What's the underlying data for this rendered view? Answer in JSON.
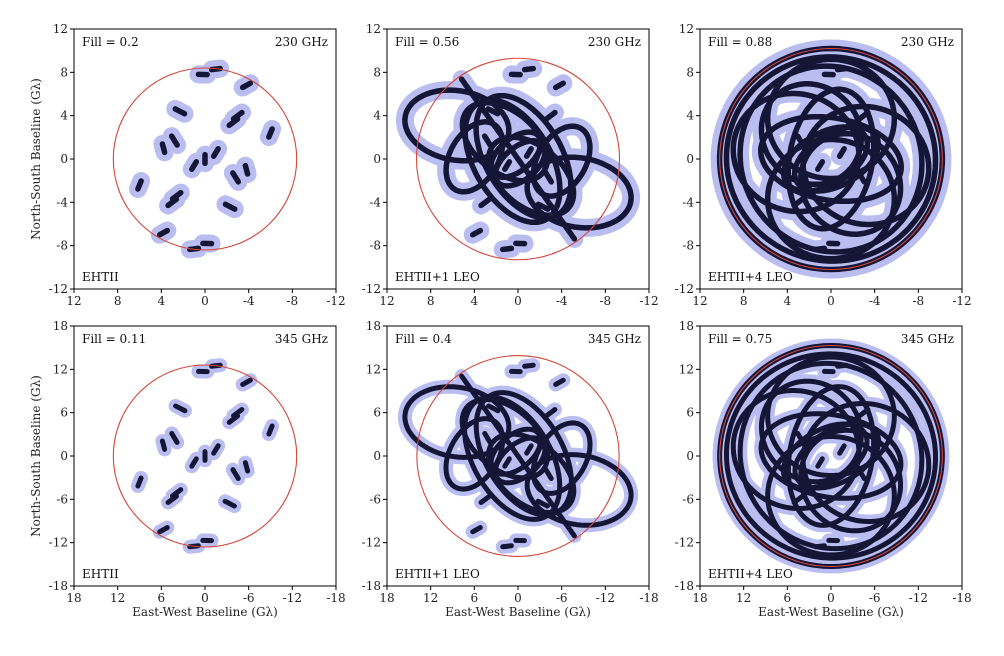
{
  "figure": {
    "xlabel": "East-West Baseline (Gλ)",
    "ylabel": "North-South Baseline (Gλ)"
  },
  "colors": {
    "track": "#151536",
    "halo": "#b9bdf0",
    "circle": "#d2473b",
    "axes": "#000000"
  },
  "chart_data": [
    {
      "type": "scatter",
      "annotations": {
        "fill": "Fill = 0.2",
        "frequency": "230 GHz",
        "array": "EHTII"
      },
      "xlim": [
        12,
        -12
      ],
      "ylim": [
        -12,
        12
      ],
      "xticks": [
        "12",
        "8",
        "4",
        "0",
        "-4",
        "-8",
        "-12"
      ],
      "yticks": [
        "-12",
        "-8",
        "-4",
        "0",
        "4",
        "8",
        "12"
      ],
      "circle_radius": 8.4,
      "orbits": [],
      "segments": [
        [
          0.2,
          7.8,
          0.1
        ],
        [
          -1.0,
          8.3,
          0.1
        ],
        [
          -3.8,
          6.8,
          0.1
        ],
        [
          2.3,
          4.4,
          0.12
        ],
        [
          -3.0,
          4.0,
          0.12
        ],
        [
          -2.6,
          3.4,
          0.12
        ],
        [
          -6.0,
          2.4,
          0.1
        ],
        [
          2.8,
          1.7,
          0.12
        ],
        [
          3.8,
          1.0,
          0.1
        ],
        [
          -1.0,
          0.6,
          0.1
        ],
        [
          0.0,
          0.0,
          0.1
        ],
        [
          1.0,
          -0.6,
          0.1
        ],
        [
          -3.8,
          -1.0,
          0.1
        ],
        [
          -2.8,
          -1.7,
          0.12
        ],
        [
          6.0,
          -2.4,
          0.1
        ],
        [
          2.6,
          -3.4,
          0.12
        ],
        [
          3.0,
          -4.0,
          0.12
        ],
        [
          -2.3,
          -4.4,
          0.12
        ],
        [
          3.8,
          -6.8,
          0.1
        ],
        [
          1.0,
          -8.3,
          0.1
        ],
        [
          -0.2,
          -7.8,
          0.1
        ]
      ]
    },
    {
      "type": "scatter",
      "annotations": {
        "fill": "Fill = 0.56",
        "frequency": "230 GHz",
        "array": "EHTII+1 LEO"
      },
      "xlim": [
        12,
        -12
      ],
      "ylim": [
        -12,
        12
      ],
      "xticks": [
        "12",
        "8",
        "4",
        "0",
        "-4",
        "-8",
        "-12"
      ],
      "yticks": [
        "-12",
        "-8",
        "-4",
        "0",
        "4",
        "8",
        "12"
      ],
      "circle_radius": 9.3,
      "orbits": [
        [
          0.0,
          0.0,
          9.0,
          0.0,
          55
        ],
        [
          -0.5,
          0.2,
          6.2,
          3.5,
          60
        ],
        [
          0.5,
          -0.2,
          6.2,
          3.5,
          240
        ],
        [
          1.2,
          1.6,
          4.5,
          2.8,
          40
        ],
        [
          -1.2,
          -1.6,
          4.5,
          2.8,
          220
        ],
        [
          0.2,
          0.4,
          2.7,
          1.5,
          140
        ],
        [
          -0.2,
          -0.4,
          2.7,
          1.5,
          320
        ],
        [
          4.0,
          0.2,
          3.5,
          2.2,
          300
        ],
        [
          -4.0,
          -0.2,
          3.5,
          2.2,
          120
        ],
        [
          5.6,
          3.1,
          4.8,
          3.2,
          190
        ],
        [
          -5.6,
          -3.1,
          4.8,
          3.2,
          10
        ]
      ],
      "segments": [
        [
          0.2,
          7.8,
          0.1
        ],
        [
          -1.0,
          8.3,
          0.1
        ],
        [
          -3.8,
          6.8,
          0.1
        ],
        [
          2.3,
          4.4,
          0.12
        ],
        [
          -3.0,
          4.0,
          0.12
        ],
        [
          2.8,
          1.7,
          0.12
        ],
        [
          -1.0,
          0.6,
          0.1
        ],
        [
          1.0,
          -0.6,
          0.1
        ],
        [
          -2.8,
          -1.7,
          0.12
        ],
        [
          3.0,
          -4.0,
          0.12
        ],
        [
          -2.3,
          -4.4,
          0.12
        ],
        [
          3.8,
          -6.8,
          0.1
        ],
        [
          1.0,
          -8.3,
          0.1
        ],
        [
          -0.2,
          -7.8,
          0.1
        ]
      ]
    },
    {
      "type": "scatter",
      "annotations": {
        "fill": "Fill = 0.88",
        "frequency": "230 GHz",
        "array": "EHTII+4 LEO"
      },
      "xlim": [
        12,
        -12
      ],
      "ylim": [
        -12,
        12
      ],
      "xticks": [
        "12",
        "8",
        "4",
        "0",
        "-4",
        "-8",
        "-12"
      ],
      "yticks": [
        "-12",
        "-8",
        "-4",
        "0",
        "4",
        "8",
        "12"
      ],
      "circle_radius": 10.2,
      "orbits": [
        [
          0.0,
          0.0,
          10.2,
          10.2,
          0
        ],
        [
          0.0,
          0.0,
          9.6,
          9.4,
          20
        ],
        [
          0.0,
          0.0,
          8.7,
          8.2,
          60
        ],
        [
          0.0,
          3.7,
          5.8,
          5.5,
          0
        ],
        [
          0.0,
          -3.7,
          5.8,
          5.5,
          0
        ],
        [
          3.2,
          0.6,
          5.8,
          5.4,
          20
        ],
        [
          -3.2,
          -0.6,
          5.8,
          5.4,
          200
        ],
        [
          1.8,
          2.3,
          4.8,
          4.4,
          50
        ],
        [
          -1.8,
          -2.3,
          4.8,
          4.4,
          230
        ],
        [
          0.0,
          0.0,
          6.5,
          3.8,
          10
        ],
        [
          0.0,
          0.0,
          6.5,
          3.8,
          100
        ],
        [
          0.5,
          0.0,
          4.2,
          2.4,
          150
        ],
        [
          -0.5,
          0.0,
          4.2,
          2.4,
          330
        ]
      ],
      "segments": [
        [
          0.2,
          7.8,
          0.1
        ],
        [
          -1.0,
          8.3,
          0.1
        ],
        [
          -3.0,
          4.0,
          0.12
        ],
        [
          2.8,
          1.7,
          0.12
        ],
        [
          -1.0,
          0.6,
          0.1
        ],
        [
          1.0,
          -0.6,
          0.1
        ],
        [
          -2.8,
          -1.7,
          0.12
        ],
        [
          3.0,
          -4.0,
          0.12
        ],
        [
          1.0,
          -8.3,
          0.1
        ],
        [
          -0.2,
          -7.8,
          0.1
        ]
      ]
    },
    {
      "type": "scatter",
      "annotations": {
        "fill": "Fill = 0.11",
        "frequency": "345 GHz",
        "array": "EHTII"
      },
      "xlim": [
        18,
        -18
      ],
      "ylim": [
        -18,
        18
      ],
      "xticks": [
        "18",
        "12",
        "6",
        "0",
        "-6",
        "-12",
        "-18"
      ],
      "yticks": [
        "-18",
        "-12",
        "-6",
        "0",
        "6",
        "12",
        "18"
      ],
      "circle_radius": 12.6,
      "orbits": [],
      "segments": [
        [
          0.3,
          11.7,
          0.15
        ],
        [
          -1.5,
          12.5,
          0.15
        ],
        [
          -5.7,
          10.2,
          0.15
        ],
        [
          3.4,
          6.6,
          0.18
        ],
        [
          -4.5,
          6.0,
          0.18
        ],
        [
          -3.9,
          5.1,
          0.18
        ],
        [
          -9.0,
          3.6,
          0.15
        ],
        [
          4.2,
          2.5,
          0.18
        ],
        [
          5.7,
          1.5,
          0.15
        ],
        [
          -1.5,
          0.9,
          0.15
        ],
        [
          0.0,
          0.0,
          0.15
        ],
        [
          1.5,
          -0.9,
          0.15
        ],
        [
          -5.7,
          -1.5,
          0.15
        ],
        [
          -4.2,
          -2.5,
          0.18
        ],
        [
          9.0,
          -3.6,
          0.15
        ],
        [
          3.9,
          -5.1,
          0.18
        ],
        [
          4.5,
          -6.0,
          0.18
        ],
        [
          -3.4,
          -6.6,
          0.18
        ],
        [
          5.7,
          -10.2,
          0.15
        ],
        [
          1.5,
          -12.5,
          0.15
        ],
        [
          -0.3,
          -11.7,
          0.15
        ]
      ]
    },
    {
      "type": "scatter",
      "annotations": {
        "fill": "Fill = 0.4",
        "frequency": "345 GHz",
        "array": "EHTII+1 LEO"
      },
      "xlim": [
        18,
        -18
      ],
      "ylim": [
        -18,
        18
      ],
      "xticks": [
        "18",
        "12",
        "6",
        "0",
        "-6",
        "-12",
        "-18"
      ],
      "yticks": [
        "-18",
        "-12",
        "-6",
        "0",
        "6",
        "12",
        "18"
      ],
      "circle_radius": 13.9,
      "orbits": [
        [
          0.0,
          0.0,
          13.5,
          0.0,
          55
        ],
        [
          -0.8,
          0.3,
          9.3,
          5.3,
          60
        ],
        [
          0.8,
          -0.3,
          9.3,
          5.3,
          240
        ],
        [
          1.8,
          2.4,
          6.8,
          4.2,
          40
        ],
        [
          -1.8,
          -2.4,
          6.8,
          4.2,
          220
        ],
        [
          0.3,
          0.6,
          4.0,
          2.3,
          140
        ],
        [
          -0.3,
          -0.6,
          4.0,
          2.3,
          320
        ],
        [
          6.0,
          0.3,
          5.3,
          3.3,
          300
        ],
        [
          -6.0,
          -0.3,
          5.3,
          3.3,
          120
        ],
        [
          8.4,
          4.7,
          7.2,
          4.8,
          190
        ],
        [
          -8.4,
          -4.7,
          7.2,
          4.8,
          10
        ]
      ],
      "segments": [
        [
          0.3,
          11.7,
          0.15
        ],
        [
          -1.5,
          12.5,
          0.15
        ],
        [
          -5.7,
          10.2,
          0.15
        ],
        [
          3.4,
          6.6,
          0.18
        ],
        [
          -4.5,
          6.0,
          0.18
        ],
        [
          4.2,
          2.5,
          0.18
        ],
        [
          -1.5,
          0.9,
          0.15
        ],
        [
          1.5,
          -0.9,
          0.15
        ],
        [
          -4.2,
          -2.5,
          0.18
        ],
        [
          4.5,
          -6.0,
          0.18
        ],
        [
          -3.4,
          -6.6,
          0.18
        ],
        [
          5.7,
          -10.2,
          0.15
        ],
        [
          1.5,
          -12.5,
          0.15
        ],
        [
          -0.3,
          -11.7,
          0.15
        ]
      ]
    },
    {
      "type": "scatter",
      "annotations": {
        "fill": "Fill = 0.75",
        "frequency": "345 GHz",
        "array": "EHTII+4 LEO"
      },
      "xlim": [
        18,
        -18
      ],
      "ylim": [
        -18,
        18
      ],
      "xticks": [
        "18",
        "12",
        "6",
        "0",
        "-6",
        "-12",
        "-18"
      ],
      "yticks": [
        "-18",
        "-12",
        "-6",
        "0",
        "6",
        "12",
        "18"
      ],
      "circle_radius": 15.3,
      "orbits": [
        [
          0.0,
          0.0,
          15.3,
          15.3,
          0
        ],
        [
          0.0,
          0.0,
          14.4,
          14.1,
          20
        ],
        [
          0.0,
          0.0,
          13.0,
          12.3,
          60
        ],
        [
          0.0,
          5.5,
          8.7,
          8.2,
          0
        ],
        [
          0.0,
          -5.5,
          8.7,
          8.2,
          0
        ],
        [
          4.8,
          0.9,
          8.7,
          8.1,
          20
        ],
        [
          -4.8,
          -0.9,
          8.7,
          8.1,
          200
        ],
        [
          2.7,
          3.4,
          7.2,
          6.6,
          50
        ],
        [
          -2.7,
          -3.4,
          7.2,
          6.6,
          230
        ],
        [
          0.0,
          0.0,
          9.7,
          5.7,
          10
        ],
        [
          0.0,
          0.0,
          9.7,
          5.7,
          100
        ],
        [
          0.8,
          0.0,
          6.3,
          3.6,
          150
        ],
        [
          -0.8,
          0.0,
          6.3,
          3.6,
          330
        ]
      ],
      "segments": [
        [
          0.3,
          11.7,
          0.15
        ],
        [
          -1.5,
          12.5,
          0.15
        ],
        [
          -4.5,
          6.0,
          0.18
        ],
        [
          4.2,
          2.5,
          0.18
        ],
        [
          -1.5,
          0.9,
          0.15
        ],
        [
          1.5,
          -0.9,
          0.15
        ],
        [
          -4.2,
          -2.5,
          0.18
        ],
        [
          4.5,
          -6.0,
          0.18
        ],
        [
          1.5,
          -12.5,
          0.15
        ],
        [
          -0.3,
          -11.7,
          0.15
        ]
      ]
    }
  ]
}
